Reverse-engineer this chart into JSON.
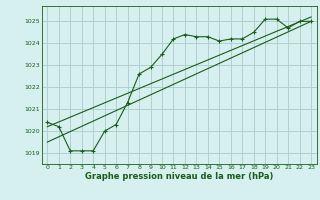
{
  "title": "Graphe pression niveau de la mer (hPa)",
  "background_color": "#d6f0f0",
  "grid_color": "#b0d0d0",
  "line_color": "#1a5c1a",
  "marker_color": "#1a5c1a",
  "xlim": [
    -0.5,
    23.5
  ],
  "ylim": [
    1018.5,
    1025.7
  ],
  "yticks": [
    1019,
    1020,
    1021,
    1022,
    1023,
    1024,
    1025
  ],
  "xticks": [
    0,
    1,
    2,
    3,
    4,
    5,
    6,
    7,
    8,
    9,
    10,
    11,
    12,
    13,
    14,
    15,
    16,
    17,
    18,
    19,
    20,
    21,
    22,
    23
  ],
  "series": [
    {
      "x": [
        0,
        1,
        2,
        3,
        4,
        5,
        6,
        7,
        8,
        9,
        10,
        11,
        12,
        13,
        14,
        15,
        16,
        17,
        18,
        19,
        20,
        21,
        22,
        23
      ],
      "y": [
        1020.4,
        1020.2,
        1019.1,
        1019.1,
        1019.1,
        1020.0,
        1020.3,
        1021.3,
        1022.6,
        1022.9,
        1023.5,
        1024.2,
        1024.4,
        1024.3,
        1024.3,
        1024.1,
        1024.2,
        1024.2,
        1024.5,
        1025.1,
        1025.1,
        1024.7,
        1025.0,
        1025.0
      ],
      "has_markers": true
    },
    {
      "x": [
        0,
        23
      ],
      "y": [
        1019.5,
        1025.0
      ],
      "has_markers": false
    },
    {
      "x": [
        0,
        23
      ],
      "y": [
        1020.2,
        1025.2
      ],
      "has_markers": false
    }
  ]
}
